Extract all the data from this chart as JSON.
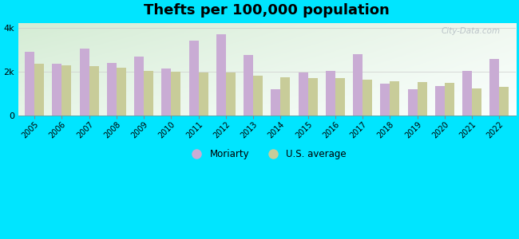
{
  "title": "Thefts per 100,000 population",
  "years": [
    2005,
    2006,
    2007,
    2008,
    2009,
    2010,
    2011,
    2012,
    2013,
    2014,
    2015,
    2016,
    2017,
    2018,
    2019,
    2020,
    2021,
    2022
  ],
  "moriarty": [
    2900,
    2350,
    3050,
    2400,
    2700,
    2150,
    3400,
    3700,
    2750,
    1200,
    1950,
    2050,
    2800,
    1450,
    1200,
    1350,
    2050,
    2600
  ],
  "us_average": [
    2350,
    2300,
    2250,
    2200,
    2050,
    2000,
    1980,
    1950,
    1820,
    1750,
    1720,
    1700,
    1650,
    1580,
    1530,
    1490,
    1250,
    1310
  ],
  "moriarty_color": "#c9acd4",
  "us_avg_color": "#c8cc99",
  "background_color_outer": "#00e5ff",
  "ylim": [
    0,
    4200
  ],
  "ytick_labels": [
    "0",
    "2k",
    "4k"
  ],
  "ytick_vals": [
    0,
    2000,
    4000
  ],
  "legend_moriarty": "Moriarty",
  "legend_us": "U.S. average",
  "title_fontsize": 13,
  "bar_width": 0.35,
  "watermark": "City-Data.com"
}
